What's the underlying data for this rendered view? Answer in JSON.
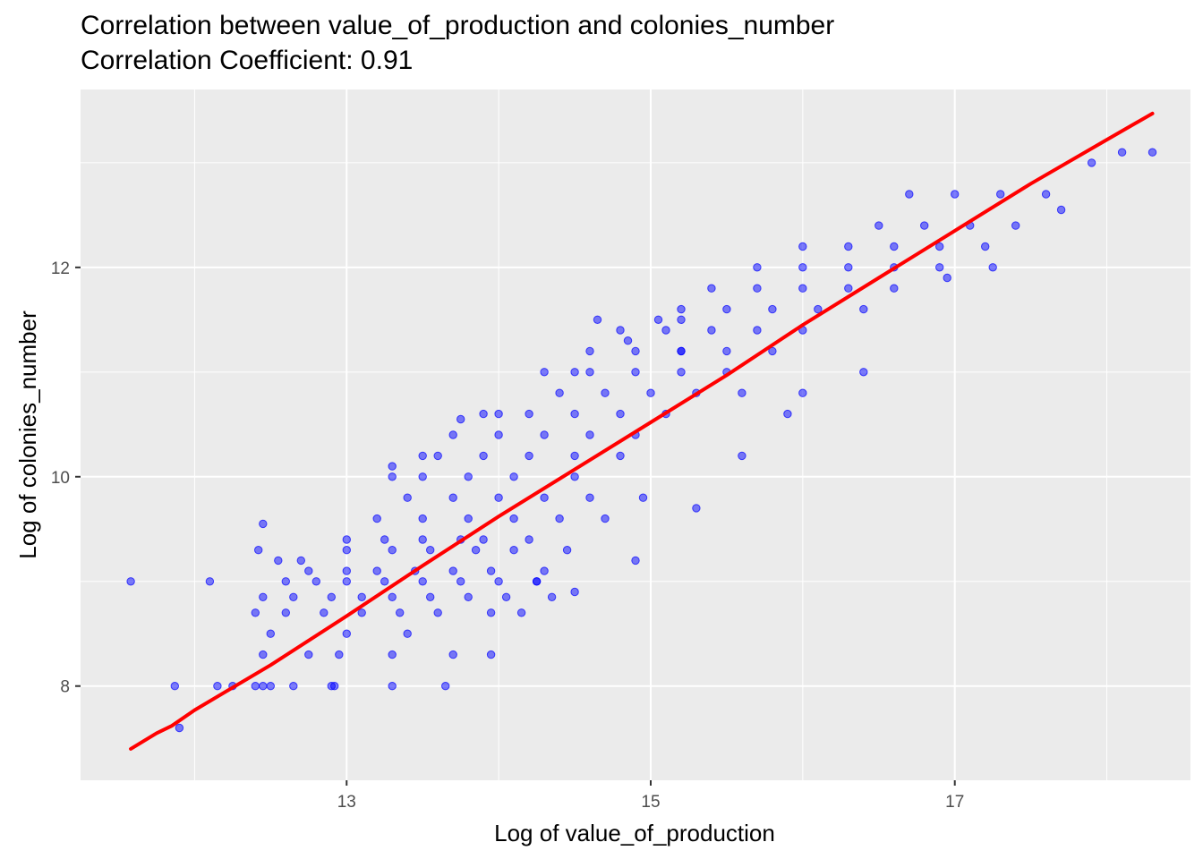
{
  "chart_data": {
    "type": "scatter",
    "title": "Correlation between value_of_production and colonies_number",
    "subtitle": "Correlation Coefficient:  0.91",
    "xlabel": "Log of value_of_production",
    "ylabel": "Log of colonies_number",
    "xlim": [
      11.25,
      18.55
    ],
    "ylim": [
      7.1,
      13.7
    ],
    "x_ticks": [
      13,
      15,
      17
    ],
    "y_ticks": [
      8,
      10,
      12
    ],
    "x_tick_labels": [
      "13",
      "15",
      "17"
    ],
    "y_tick_labels": [
      "8",
      "10",
      "12"
    ],
    "grid": true,
    "legend": "none",
    "point_color": "#0000ff",
    "point_alpha": 0.5,
    "line_color": "#ff0000",
    "background": "#ebebeb",
    "series": [
      {
        "type": "smooth_line",
        "x": [
          11.58,
          11.75,
          11.85,
          12.0,
          12.5,
          13.0,
          13.5,
          14.0,
          14.5,
          15.0,
          15.5,
          16.0,
          16.5,
          17.0,
          17.5,
          18.0,
          18.3
        ],
        "y": [
          7.4,
          7.55,
          7.62,
          7.77,
          8.2,
          8.67,
          9.15,
          9.62,
          10.07,
          10.52,
          10.97,
          11.45,
          11.9,
          12.35,
          12.8,
          13.22,
          13.47
        ]
      },
      {
        "type": "scatter",
        "x": [
          11.58,
          11.87,
          11.9,
          12.1,
          12.15,
          12.25,
          12.4,
          12.45,
          12.5,
          12.65,
          12.75,
          12.9,
          12.92,
          13.3,
          13.65,
          13.95,
          12.45,
          12.95,
          13.3,
          13.7,
          12.5,
          13.0,
          13.4,
          12.4,
          12.6,
          12.85,
          13.1,
          13.35,
          13.6,
          13.95,
          14.15,
          12.45,
          12.65,
          12.9,
          13.1,
          13.3,
          13.55,
          13.8,
          14.05,
          14.35,
          12.6,
          12.8,
          13.0,
          13.25,
          13.5,
          13.75,
          14.0,
          14.25,
          12.75,
          13.0,
          13.2,
          13.45,
          13.7,
          13.95,
          14.3,
          13.0,
          13.3,
          13.55,
          13.85,
          14.1,
          14.45,
          12.45,
          12.7,
          13.0,
          13.25,
          13.5,
          13.75,
          13.9,
          14.2,
          13.2,
          13.5,
          13.8,
          14.1,
          14.4,
          13.4,
          13.7,
          14.0,
          14.3,
          14.6,
          13.5,
          13.8,
          14.1,
          14.5,
          13.3,
          13.6,
          13.9,
          14.2,
          14.5,
          14.8,
          13.7,
          14.0,
          14.3,
          14.6,
          14.9,
          13.9,
          14.2,
          14.5,
          14.8,
          15.1,
          14.4,
          14.7,
          15.0,
          15.3,
          14.3,
          14.6,
          14.9,
          15.2,
          15.5,
          14.6,
          14.9,
          15.2,
          15.5,
          15.8,
          14.8,
          15.1,
          15.4,
          15.7,
          16.0,
          15.2,
          15.5,
          15.8,
          16.1,
          16.4,
          15.4,
          15.7,
          16.0,
          16.3,
          16.6,
          15.7,
          16.0,
          16.3,
          16.6,
          16.9,
          16.0,
          16.3,
          16.6,
          16.9,
          17.2,
          16.5,
          16.8,
          17.1,
          17.4,
          16.7,
          17.0,
          17.3,
          17.6,
          17.9,
          18.1,
          18.3,
          14.7,
          14.95,
          15.3,
          15.6,
          15.9,
          13.5,
          14.0,
          14.5,
          15.2,
          14.9,
          15.6,
          16.0,
          16.4,
          17.7,
          17.25,
          16.95,
          14.65,
          14.85,
          15.05,
          15.2,
          14.5,
          14.25,
          13.75,
          13.3,
          12.42,
          12.55
        ],
        "y": [
          9.0,
          8.0,
          7.6,
          9.0,
          8.0,
          8.0,
          8.0,
          8.0,
          8.0,
          8.0,
          8.3,
          8.0,
          8.0,
          8.0,
          8.0,
          8.3,
          8.3,
          8.3,
          8.3,
          8.3,
          8.5,
          8.5,
          8.5,
          8.7,
          8.7,
          8.7,
          8.7,
          8.7,
          8.7,
          8.7,
          8.7,
          8.85,
          8.85,
          8.85,
          8.85,
          8.85,
          8.85,
          8.85,
          8.85,
          8.85,
          9.0,
          9.0,
          9.0,
          9.0,
          9.0,
          9.0,
          9.0,
          9.0,
          9.1,
          9.1,
          9.1,
          9.1,
          9.1,
          9.1,
          9.1,
          9.3,
          9.3,
          9.3,
          9.3,
          9.3,
          9.3,
          9.55,
          9.2,
          9.4,
          9.4,
          9.4,
          9.4,
          9.4,
          9.4,
          9.6,
          9.6,
          9.6,
          9.6,
          9.6,
          9.8,
          9.8,
          9.8,
          9.8,
          9.8,
          10.0,
          10.0,
          10.0,
          10.0,
          10.1,
          10.2,
          10.2,
          10.2,
          10.2,
          10.2,
          10.4,
          10.4,
          10.4,
          10.4,
          10.4,
          10.6,
          10.6,
          10.6,
          10.6,
          10.6,
          10.8,
          10.8,
          10.8,
          10.8,
          11.0,
          11.0,
          11.0,
          11.0,
          11.0,
          11.2,
          11.2,
          11.2,
          11.2,
          11.2,
          11.4,
          11.4,
          11.4,
          11.4,
          11.4,
          11.6,
          11.6,
          11.6,
          11.6,
          11.6,
          11.8,
          11.8,
          11.8,
          11.8,
          11.8,
          12.0,
          12.0,
          12.0,
          12.0,
          12.0,
          12.2,
          12.2,
          12.2,
          12.2,
          12.2,
          12.4,
          12.4,
          12.4,
          12.4,
          12.7,
          12.7,
          12.7,
          12.7,
          13.0,
          13.1,
          13.1,
          9.6,
          9.8,
          9.7,
          10.8,
          10.6,
          10.2,
          10.6,
          11.0,
          11.5,
          9.2,
          10.2,
          10.8,
          11.0,
          12.55,
          12.0,
          11.9,
          11.5,
          11.3,
          11.5,
          11.2,
          8.9,
          9.0,
          10.55,
          10.0,
          9.3,
          9.2
        ]
      }
    ]
  }
}
